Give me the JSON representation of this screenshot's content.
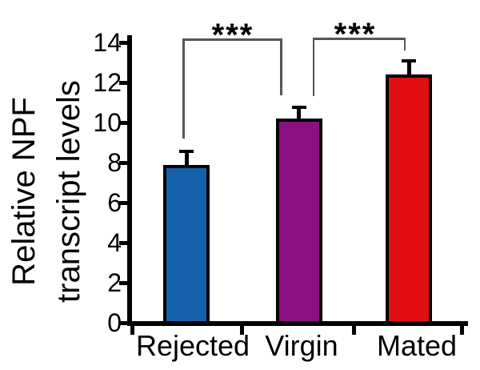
{
  "chart_data": {
    "type": "bar",
    "title": "",
    "xlabel": "",
    "ylabel": "Relative NPF transcript levels",
    "ylabel_lines": [
      "Relative NPF",
      "transcript levels"
    ],
    "categories": [
      "Rejected",
      "Virgin",
      "Mated"
    ],
    "values": [
      7.9,
      10.2,
      12.4
    ],
    "errors_upper": [
      0.6,
      0.5,
      0.6
    ],
    "bar_colors": [
      "#1561AA",
      "#8B1082",
      "#E20E11"
    ],
    "ylim": [
      0,
      14
    ],
    "yticks": [
      0,
      2,
      4,
      6,
      8,
      10,
      12,
      14
    ],
    "grid": false,
    "legend": null,
    "significance": [
      {
        "from": "Rejected",
        "to": "Virgin",
        "label": "***"
      },
      {
        "from": "Virgin",
        "to": "Mated",
        "label": "***"
      }
    ]
  }
}
